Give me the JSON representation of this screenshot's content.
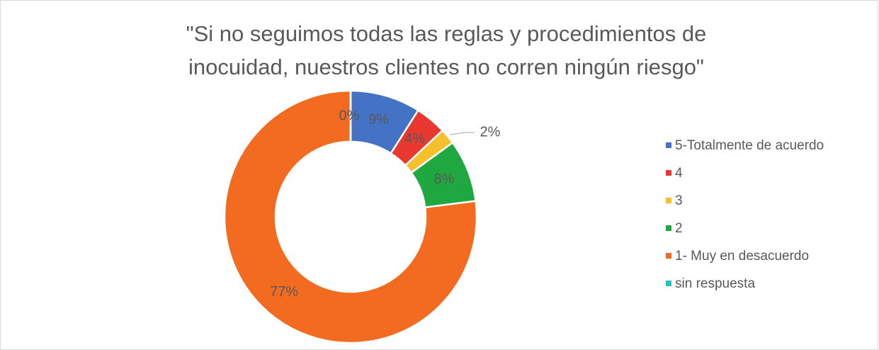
{
  "chart_data": {
    "type": "donut",
    "title": [
      "\"Si no seguimos todas las reglas y procedimientos de",
      "inocuidad, nuestros clientes no corren ningún riesgo\""
    ],
    "categories": [
      "5-Totalmente de acuerdo",
      "4",
      "3",
      "2",
      "1- Muy en desacuerdo",
      "sin respuesta"
    ],
    "values": [
      9,
      4,
      2,
      8,
      77,
      0
    ],
    "value_labels": [
      "9%",
      "4%",
      "2%",
      "8%",
      "77%",
      "0%"
    ],
    "colors": [
      "#4472c4",
      "#e8382f",
      "#f5c02c",
      "#1fa83f",
      "#f26b21",
      "#2bbfc4"
    ],
    "legend": "right"
  }
}
